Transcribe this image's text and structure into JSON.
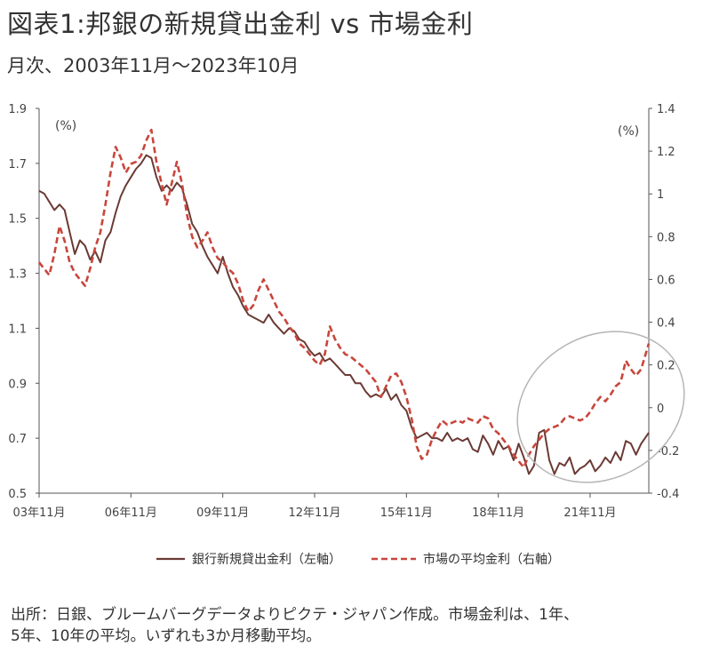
{
  "title": "図表1:邦銀の新規貸出金利 vs 市場金利",
  "subtitle": "月次、2003年11月～2023年10月",
  "source_lines": [
    "出所：日銀、ブルームバーグデータよりピクテ・ジャパン作成。市場金利は、1年、",
    "5年、10年の平均。いずれも3か月移動平均。"
  ],
  "colors": {
    "bank": "#6b3a34",
    "market": "#c8463c",
    "circle": "#b5b5b5",
    "axis": "#555555"
  },
  "chart_data": {
    "type": "line",
    "left_unit": "(%)",
    "right_unit": "(%)",
    "x_start": "2003-11",
    "x_end": "2023-10",
    "x_ticks": [
      "03年11月",
      "06年11月",
      "09年11月",
      "12年11月",
      "15年11月",
      "18年11月",
      "21年11月"
    ],
    "y_left": {
      "min": 0.5,
      "max": 1.9,
      "ticks": [
        "0.5",
        "0.7",
        "0.9",
        "1.1",
        "1.3",
        "1.5",
        "1.7",
        "1.9"
      ]
    },
    "y_right": {
      "min": -0.4,
      "max": 1.4,
      "ticks": [
        "-0.4",
        "-0.2",
        "0",
        "0.2",
        "0.4",
        "0.6",
        "0.8",
        "1",
        "1.2",
        "1.4"
      ]
    },
    "series": [
      {
        "name": "銀行新規貸出金利（左軸）",
        "axis": "left",
        "style": "solid",
        "points": [
          [
            "2003-11",
            1.6
          ],
          [
            "2004-01",
            1.59
          ],
          [
            "2004-03",
            1.56
          ],
          [
            "2004-05",
            1.53
          ],
          [
            "2004-07",
            1.55
          ],
          [
            "2004-09",
            1.53
          ],
          [
            "2004-11",
            1.45
          ],
          [
            "2005-01",
            1.37
          ],
          [
            "2005-03",
            1.42
          ],
          [
            "2005-05",
            1.4
          ],
          [
            "2005-07",
            1.35
          ],
          [
            "2005-09",
            1.38
          ],
          [
            "2005-11",
            1.34
          ],
          [
            "2006-01",
            1.42
          ],
          [
            "2006-03",
            1.45
          ],
          [
            "2006-05",
            1.52
          ],
          [
            "2006-07",
            1.58
          ],
          [
            "2006-09",
            1.62
          ],
          [
            "2006-11",
            1.65
          ],
          [
            "2007-01",
            1.68
          ],
          [
            "2007-03",
            1.7
          ],
          [
            "2007-05",
            1.73
          ],
          [
            "2007-07",
            1.72
          ],
          [
            "2007-09",
            1.65
          ],
          [
            "2007-11",
            1.6
          ],
          [
            "2008-01",
            1.62
          ],
          [
            "2008-03",
            1.6
          ],
          [
            "2008-05",
            1.63
          ],
          [
            "2008-07",
            1.61
          ],
          [
            "2008-09",
            1.55
          ],
          [
            "2008-11",
            1.48
          ],
          [
            "2009-01",
            1.45
          ],
          [
            "2009-03",
            1.4
          ],
          [
            "2009-05",
            1.36
          ],
          [
            "2009-07",
            1.33
          ],
          [
            "2009-09",
            1.3
          ],
          [
            "2009-11",
            1.36
          ],
          [
            "2010-01",
            1.3
          ],
          [
            "2010-03",
            1.25
          ],
          [
            "2010-05",
            1.22
          ],
          [
            "2010-07",
            1.18
          ],
          [
            "2010-09",
            1.15
          ],
          [
            "2010-11",
            1.14
          ],
          [
            "2011-01",
            1.13
          ],
          [
            "2011-03",
            1.12
          ],
          [
            "2011-05",
            1.15
          ],
          [
            "2011-07",
            1.12
          ],
          [
            "2011-09",
            1.1
          ],
          [
            "2011-11",
            1.08
          ],
          [
            "2012-01",
            1.1
          ],
          [
            "2012-03",
            1.09
          ],
          [
            "2012-05",
            1.06
          ],
          [
            "2012-07",
            1.05
          ],
          [
            "2012-09",
            1.02
          ],
          [
            "2012-11",
            1.0
          ],
          [
            "2013-01",
            1.01
          ],
          [
            "2013-03",
            0.98
          ],
          [
            "2013-05",
            0.99
          ],
          [
            "2013-07",
            0.97
          ],
          [
            "2013-09",
            0.95
          ],
          [
            "2013-11",
            0.93
          ],
          [
            "2014-01",
            0.93
          ],
          [
            "2014-03",
            0.9
          ],
          [
            "2014-05",
            0.9
          ],
          [
            "2014-07",
            0.87
          ],
          [
            "2014-09",
            0.85
          ],
          [
            "2014-11",
            0.86
          ],
          [
            "2015-01",
            0.85
          ],
          [
            "2015-03",
            0.88
          ],
          [
            "2015-05",
            0.84
          ],
          [
            "2015-07",
            0.86
          ],
          [
            "2015-09",
            0.82
          ],
          [
            "2015-11",
            0.8
          ],
          [
            "2016-01",
            0.74
          ],
          [
            "2016-03",
            0.7
          ],
          [
            "2016-05",
            0.71
          ],
          [
            "2016-07",
            0.72
          ],
          [
            "2016-09",
            0.7
          ],
          [
            "2016-11",
            0.7
          ],
          [
            "2017-01",
            0.69
          ],
          [
            "2017-03",
            0.72
          ],
          [
            "2017-05",
            0.69
          ],
          [
            "2017-07",
            0.7
          ],
          [
            "2017-09",
            0.69
          ],
          [
            "2017-11",
            0.7
          ],
          [
            "2018-01",
            0.66
          ],
          [
            "2018-03",
            0.65
          ],
          [
            "2018-05",
            0.71
          ],
          [
            "2018-07",
            0.68
          ],
          [
            "2018-09",
            0.64
          ],
          [
            "2018-11",
            0.69
          ],
          [
            "2019-01",
            0.66
          ],
          [
            "2019-03",
            0.67
          ],
          [
            "2019-05",
            0.62
          ],
          [
            "2019-07",
            0.68
          ],
          [
            "2019-09",
            0.63
          ],
          [
            "2019-11",
            0.57
          ],
          [
            "2020-01",
            0.6
          ],
          [
            "2020-03",
            0.72
          ],
          [
            "2020-05",
            0.73
          ],
          [
            "2020-07",
            0.62
          ],
          [
            "2020-09",
            0.57
          ],
          [
            "2020-11",
            0.61
          ],
          [
            "2021-01",
            0.6
          ],
          [
            "2021-03",
            0.63
          ],
          [
            "2021-05",
            0.57
          ],
          [
            "2021-07",
            0.59
          ],
          [
            "2021-09",
            0.6
          ],
          [
            "2021-11",
            0.62
          ],
          [
            "2022-01",
            0.58
          ],
          [
            "2022-03",
            0.6
          ],
          [
            "2022-05",
            0.63
          ],
          [
            "2022-07",
            0.61
          ],
          [
            "2022-09",
            0.65
          ],
          [
            "2022-11",
            0.62
          ],
          [
            "2023-01",
            0.69
          ],
          [
            "2023-03",
            0.68
          ],
          [
            "2023-05",
            0.64
          ],
          [
            "2023-07",
            0.68
          ],
          [
            "2023-10",
            0.72
          ]
        ]
      },
      {
        "name": "市場の平均金利（右軸）",
        "axis": "right",
        "style": "dashed",
        "points": [
          [
            "2003-11",
            0.68
          ],
          [
            "2004-01",
            0.65
          ],
          [
            "2004-03",
            0.62
          ],
          [
            "2004-05",
            0.72
          ],
          [
            "2004-07",
            0.85
          ],
          [
            "2004-09",
            0.78
          ],
          [
            "2004-11",
            0.68
          ],
          [
            "2005-01",
            0.63
          ],
          [
            "2005-03",
            0.6
          ],
          [
            "2005-05",
            0.57
          ],
          [
            "2005-07",
            0.65
          ],
          [
            "2005-09",
            0.75
          ],
          [
            "2005-11",
            0.82
          ],
          [
            "2006-01",
            0.95
          ],
          [
            "2006-03",
            1.1
          ],
          [
            "2006-05",
            1.22
          ],
          [
            "2006-07",
            1.17
          ],
          [
            "2006-09",
            1.1
          ],
          [
            "2006-11",
            1.14
          ],
          [
            "2007-01",
            1.15
          ],
          [
            "2007-03",
            1.18
          ],
          [
            "2007-05",
            1.25
          ],
          [
            "2007-07",
            1.3
          ],
          [
            "2007-09",
            1.15
          ],
          [
            "2007-11",
            1.05
          ],
          [
            "2008-01",
            0.95
          ],
          [
            "2008-03",
            1.05
          ],
          [
            "2008-05",
            1.15
          ],
          [
            "2008-07",
            1.05
          ],
          [
            "2008-09",
            0.9
          ],
          [
            "2008-11",
            0.8
          ],
          [
            "2009-01",
            0.75
          ],
          [
            "2009-03",
            0.78
          ],
          [
            "2009-05",
            0.82
          ],
          [
            "2009-07",
            0.75
          ],
          [
            "2009-09",
            0.7
          ],
          [
            "2009-11",
            0.68
          ],
          [
            "2010-01",
            0.65
          ],
          [
            "2010-03",
            0.63
          ],
          [
            "2010-05",
            0.58
          ],
          [
            "2010-07",
            0.5
          ],
          [
            "2010-09",
            0.45
          ],
          [
            "2010-11",
            0.48
          ],
          [
            "2011-01",
            0.55
          ],
          [
            "2011-03",
            0.6
          ],
          [
            "2011-05",
            0.55
          ],
          [
            "2011-07",
            0.5
          ],
          [
            "2011-09",
            0.45
          ],
          [
            "2011-11",
            0.42
          ],
          [
            "2012-01",
            0.38
          ],
          [
            "2012-03",
            0.35
          ],
          [
            "2012-05",
            0.3
          ],
          [
            "2012-07",
            0.28
          ],
          [
            "2012-09",
            0.25
          ],
          [
            "2012-11",
            0.22
          ],
          [
            "2013-01",
            0.2
          ],
          [
            "2013-03",
            0.25
          ],
          [
            "2013-05",
            0.38
          ],
          [
            "2013-07",
            0.32
          ],
          [
            "2013-09",
            0.28
          ],
          [
            "2013-11",
            0.25
          ],
          [
            "2014-01",
            0.24
          ],
          [
            "2014-03",
            0.22
          ],
          [
            "2014-05",
            0.2
          ],
          [
            "2014-07",
            0.18
          ],
          [
            "2014-09",
            0.15
          ],
          [
            "2014-11",
            0.12
          ],
          [
            "2015-01",
            0.05
          ],
          [
            "2015-03",
            0.1
          ],
          [
            "2015-05",
            0.15
          ],
          [
            "2015-07",
            0.16
          ],
          [
            "2015-09",
            0.12
          ],
          [
            "2015-11",
            0.05
          ],
          [
            "2016-01",
            -0.05
          ],
          [
            "2016-03",
            -0.18
          ],
          [
            "2016-05",
            -0.24
          ],
          [
            "2016-07",
            -0.22
          ],
          [
            "2016-09",
            -0.15
          ],
          [
            "2016-11",
            -0.1
          ],
          [
            "2017-01",
            -0.06
          ],
          [
            "2017-03",
            -0.08
          ],
          [
            "2017-05",
            -0.07
          ],
          [
            "2017-07",
            -0.06
          ],
          [
            "2017-09",
            -0.07
          ],
          [
            "2017-11",
            -0.05
          ],
          [
            "2018-01",
            -0.06
          ],
          [
            "2018-03",
            -0.07
          ],
          [
            "2018-05",
            -0.04
          ],
          [
            "2018-07",
            -0.05
          ],
          [
            "2018-09",
            -0.1
          ],
          [
            "2018-11",
            -0.12
          ],
          [
            "2019-01",
            -0.15
          ],
          [
            "2019-03",
            -0.18
          ],
          [
            "2019-05",
            -0.22
          ],
          [
            "2019-07",
            -0.25
          ],
          [
            "2019-09",
            -0.28
          ],
          [
            "2019-11",
            -0.22
          ],
          [
            "2020-01",
            -0.18
          ],
          [
            "2020-03",
            -0.15
          ],
          [
            "2020-05",
            -0.12
          ],
          [
            "2020-07",
            -0.1
          ],
          [
            "2020-09",
            -0.09
          ],
          [
            "2020-11",
            -0.08
          ],
          [
            "2021-01",
            -0.05
          ],
          [
            "2021-03",
            -0.04
          ],
          [
            "2021-05",
            -0.05
          ],
          [
            "2021-07",
            -0.06
          ],
          [
            "2021-09",
            -0.05
          ],
          [
            "2021-11",
            -0.02
          ],
          [
            "2022-01",
            0.02
          ],
          [
            "2022-03",
            0.05
          ],
          [
            "2022-05",
            0.03
          ],
          [
            "2022-07",
            0.06
          ],
          [
            "2022-09",
            0.1
          ],
          [
            "2022-11",
            0.12
          ],
          [
            "2023-01",
            0.22
          ],
          [
            "2023-03",
            0.18
          ],
          [
            "2023-05",
            0.15
          ],
          [
            "2023-07",
            0.18
          ],
          [
            "2023-10",
            0.3
          ]
        ]
      }
    ]
  }
}
